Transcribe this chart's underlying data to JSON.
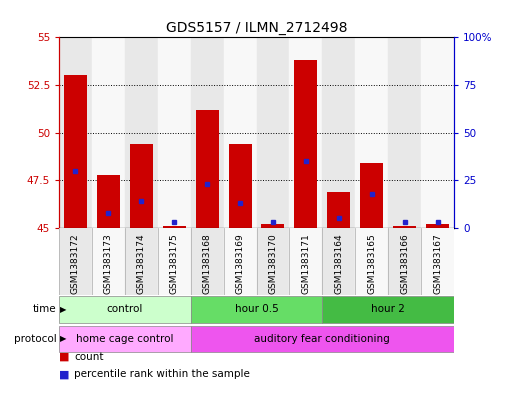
{
  "title": "GDS5157 / ILMN_2712498",
  "samples": [
    "GSM1383172",
    "GSM1383173",
    "GSM1383174",
    "GSM1383175",
    "GSM1383168",
    "GSM1383169",
    "GSM1383170",
    "GSM1383171",
    "GSM1383164",
    "GSM1383165",
    "GSM1383166",
    "GSM1383167"
  ],
  "count_values": [
    53.0,
    47.8,
    49.4,
    45.1,
    51.2,
    49.4,
    45.2,
    53.8,
    46.9,
    48.4,
    45.1,
    45.2
  ],
  "percentile_values": [
    30,
    8,
    14,
    3,
    23,
    13,
    3,
    35,
    5,
    18,
    3,
    3
  ],
  "count_base": 45.0,
  "ylim_left": [
    45,
    55
  ],
  "ylim_right": [
    0,
    100
  ],
  "yticks_left": [
    45,
    47.5,
    50,
    52.5,
    55
  ],
  "yticks_right": [
    0,
    25,
    50,
    75,
    100
  ],
  "ytick_labels_left": [
    "45",
    "47.5",
    "50",
    "52.5",
    "55"
  ],
  "ytick_labels_right": [
    "0",
    "25",
    "50",
    "75",
    "100%"
  ],
  "time_groups": [
    {
      "label": "control",
      "start": 0,
      "end": 4,
      "color": "#ccffcc"
    },
    {
      "label": "hour 0.5",
      "start": 4,
      "end": 8,
      "color": "#66dd66"
    },
    {
      "label": "hour 2",
      "start": 8,
      "end": 12,
      "color": "#44bb44"
    }
  ],
  "protocol_groups": [
    {
      "label": "home cage control",
      "start": 0,
      "end": 4,
      "color": "#ffaaff"
    },
    {
      "label": "auditory fear conditioning",
      "start": 4,
      "end": 12,
      "color": "#ee55ee"
    }
  ],
  "bar_color": "#cc0000",
  "dot_color": "#2222cc",
  "grid_color": "#000000",
  "bg_color": "#ffffff",
  "left_axis_color": "#cc0000",
  "right_axis_color": "#0000cc",
  "col_bg_even": "#e8e8e8",
  "col_bg_odd": "#f8f8f8",
  "bar_width": 0.7
}
